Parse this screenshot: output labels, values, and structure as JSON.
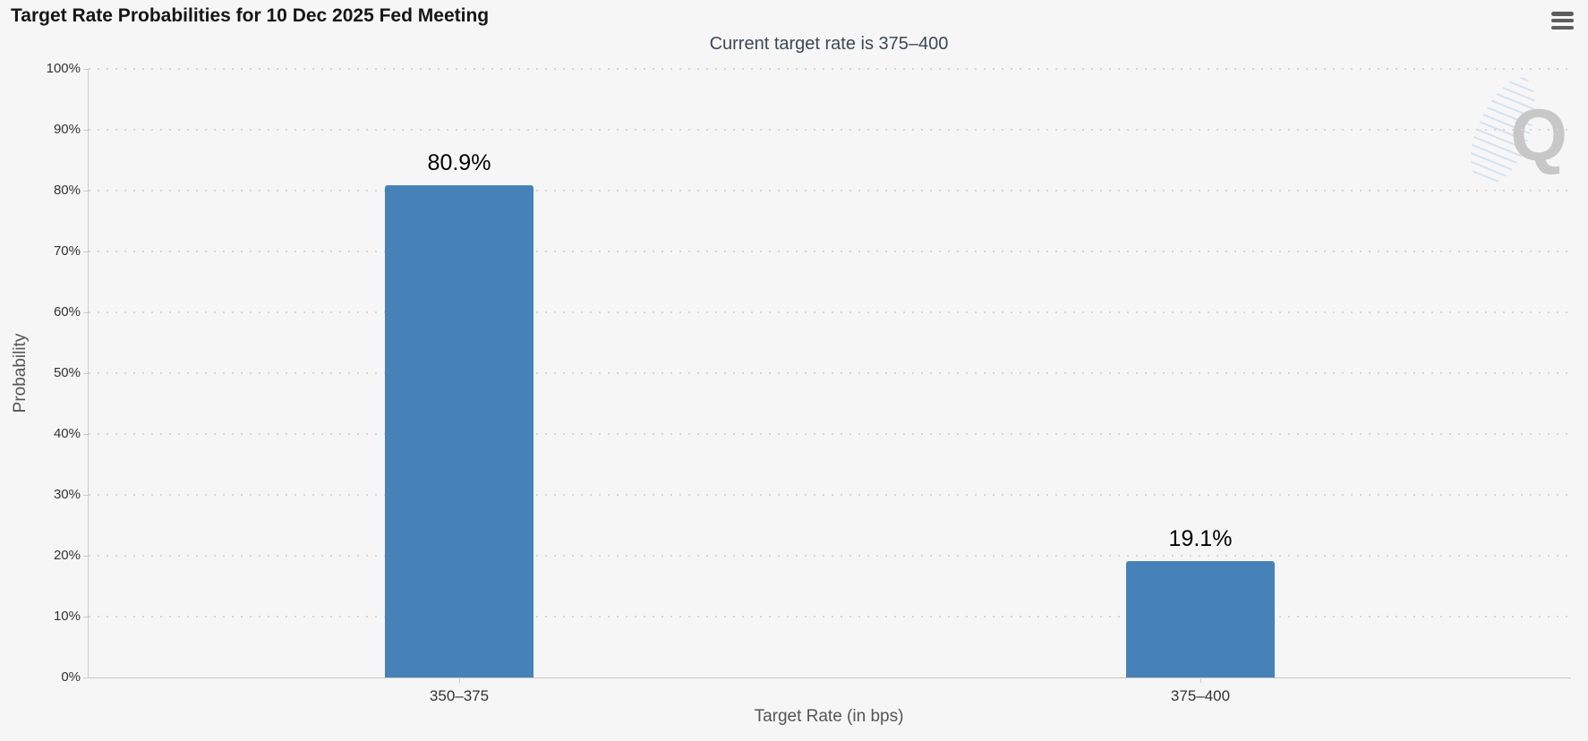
{
  "watermark": {
    "letter": "Q"
  },
  "menu": {
    "icon": "hamburger-menu-icon"
  },
  "chart_data": {
    "type": "bar",
    "title": "Target Rate Probabilities for 10 Dec 2025 Fed Meeting",
    "subtitle": "Current target rate is 375–400",
    "categories": [
      "350–375",
      "375–400"
    ],
    "values": [
      80.9,
      19.1
    ],
    "data_labels": [
      "80.9%",
      "19.1%"
    ],
    "xlabel": "Target Rate (in bps)",
    "ylabel": "Probability",
    "ylim": [
      0,
      100
    ],
    "ytick_step": 10,
    "ytick_labels": [
      "0%",
      "10%",
      "20%",
      "30%",
      "40%",
      "50%",
      "60%",
      "70%",
      "80%",
      "90%",
      "100%"
    ],
    "legend": "none",
    "grid": "horizontal-dotted",
    "colors": {
      "bar": "#4682b8",
      "subtitle_text": "#3d4858",
      "axis_line": "#cccccc",
      "grid_dot": "#d6d6d6",
      "background": "#f6f6f6"
    }
  }
}
